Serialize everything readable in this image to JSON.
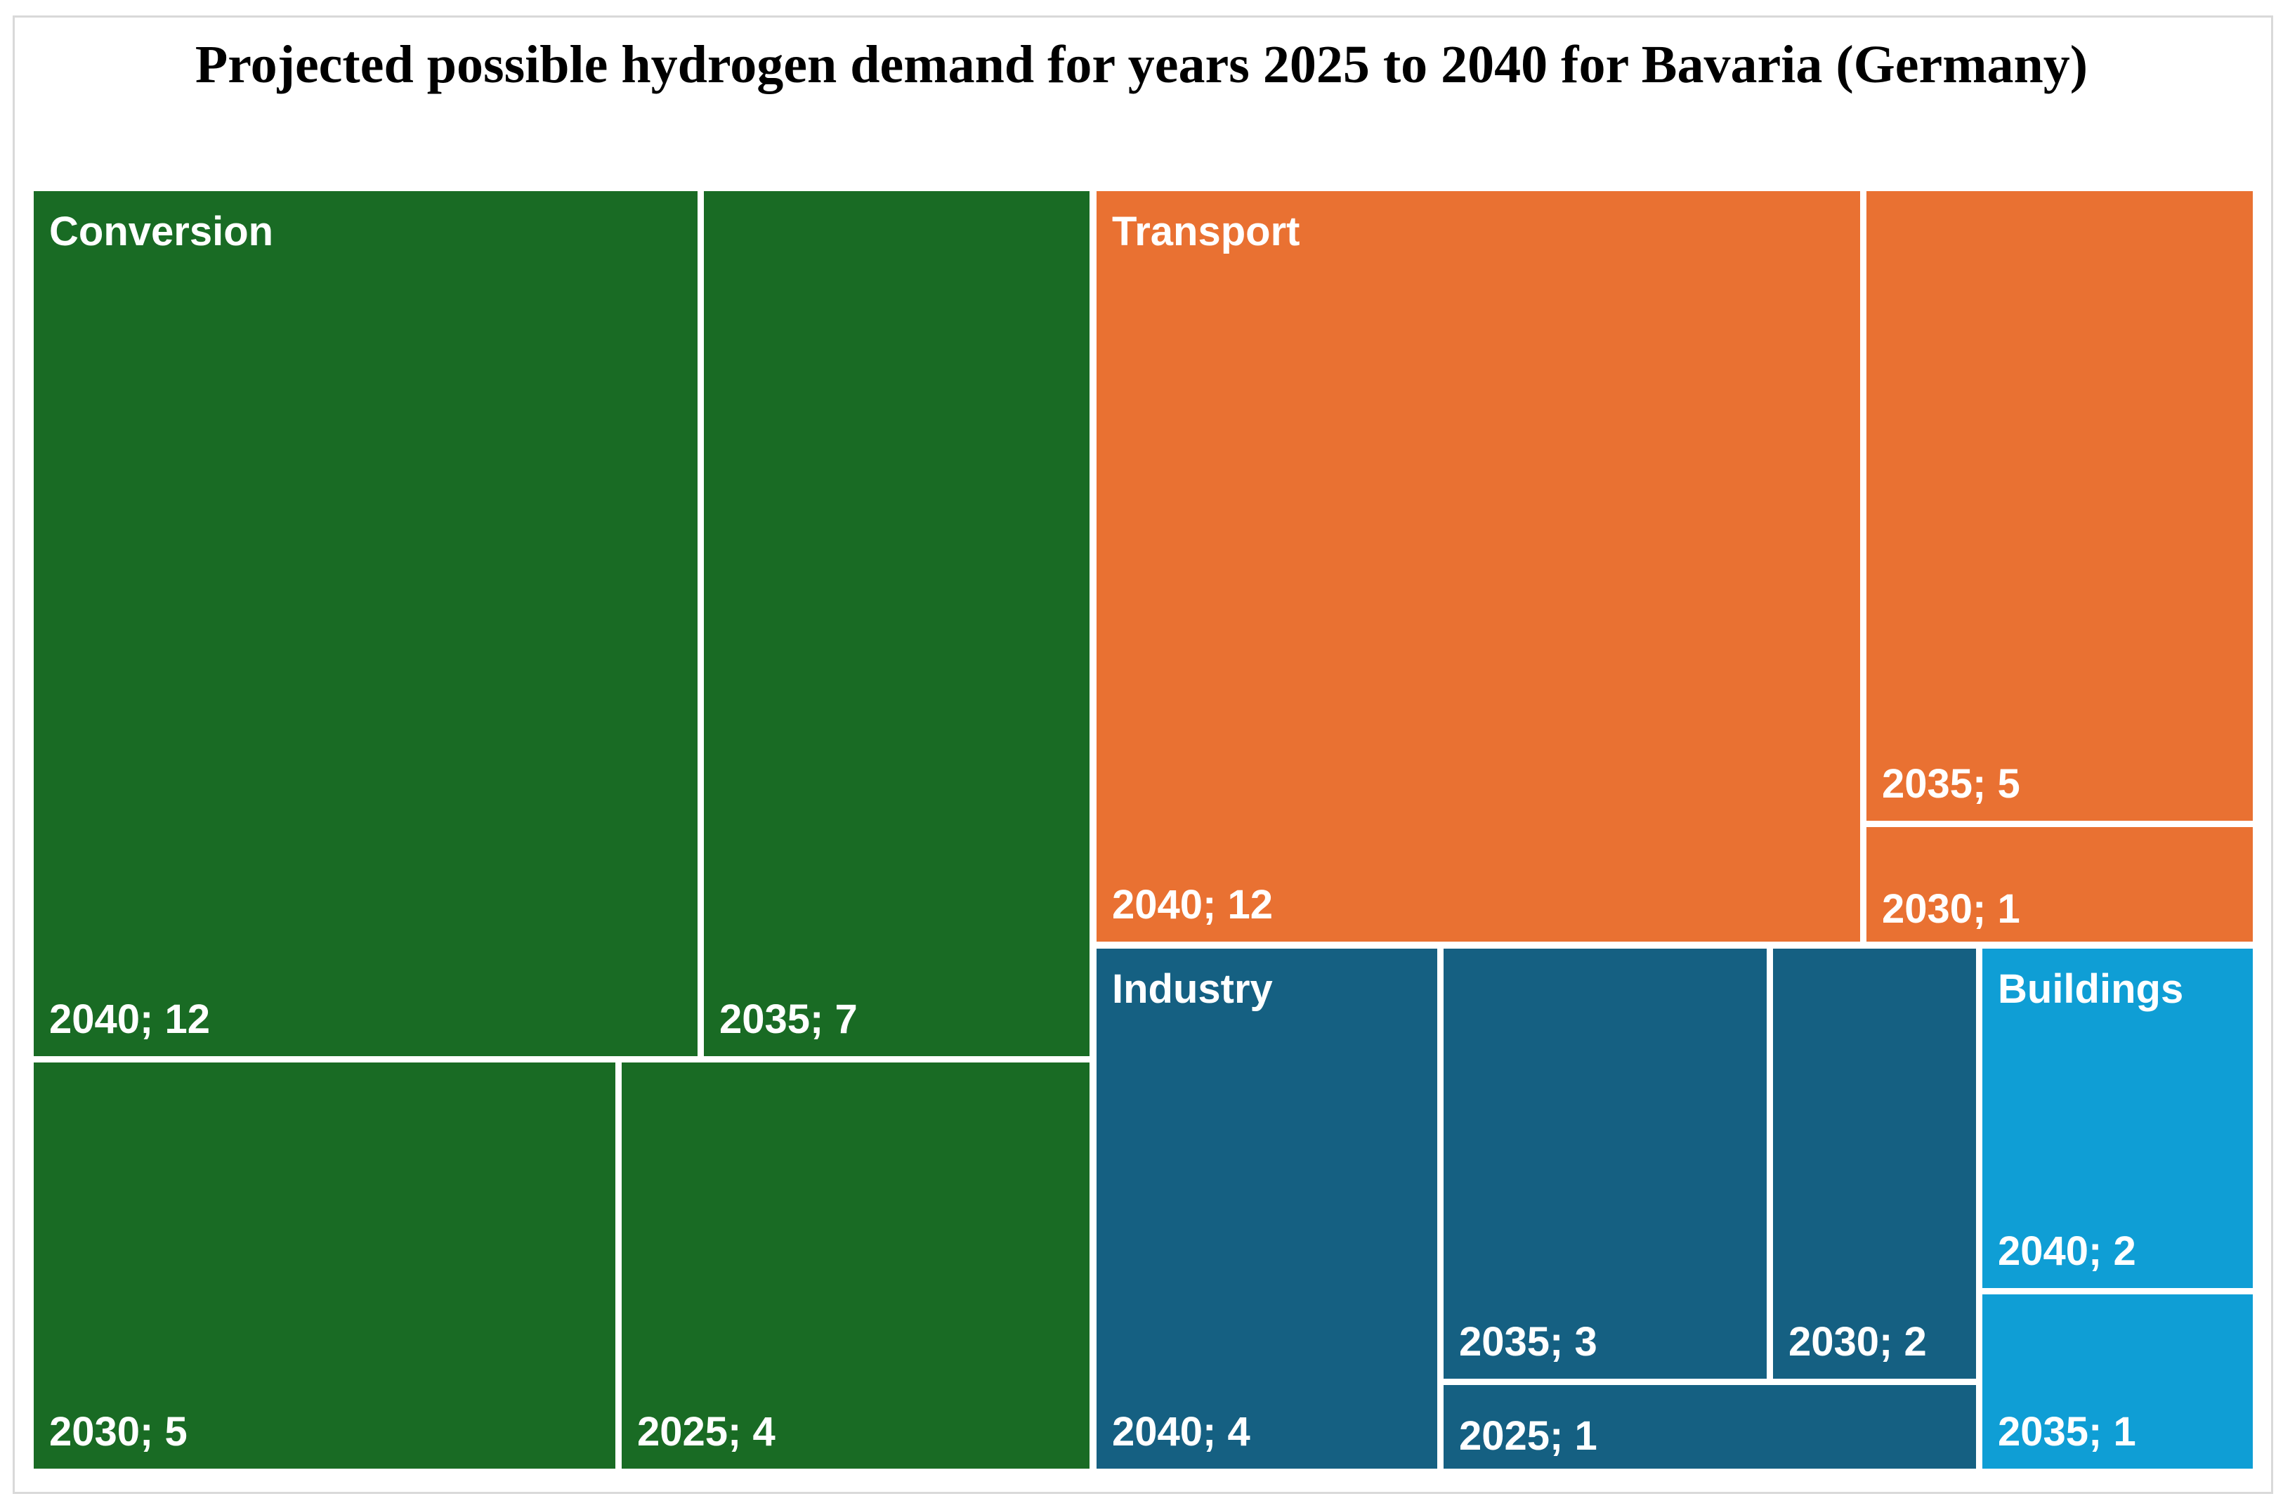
{
  "title": "Projected possible hydrogen demand for years 2025 to 2040 for Bavaria (Germany)",
  "frame": {
    "background": "#FFFFFF",
    "border_color": "#D9D9D9",
    "gap_color": "#FFFFFF",
    "label_color": "#FFFFFF"
  },
  "chart_data": {
    "type": "treemap",
    "title": "Projected possible hydrogen demand for years 2025 to 2040 for Bavaria (Germany)",
    "legend": "none",
    "label_format": "year; value",
    "groups": [
      {
        "name": "Conversion",
        "color": "#196B24",
        "items": [
          {
            "year": 2040,
            "value": 12,
            "label": "2040; 12"
          },
          {
            "year": 2035,
            "value": 7,
            "label": "2035; 7"
          },
          {
            "year": 2030,
            "value": 5,
            "label": "2030; 5"
          },
          {
            "year": 2025,
            "value": 4,
            "label": "2025; 4"
          }
        ]
      },
      {
        "name": "Transport",
        "color": "#E97132",
        "items": [
          {
            "year": 2040,
            "value": 12,
            "label": "2040; 12"
          },
          {
            "year": 2035,
            "value": 5,
            "label": "2035; 5"
          },
          {
            "year": 2030,
            "value": 1,
            "label": "2030; 1"
          }
        ]
      },
      {
        "name": "Industry",
        "color": "#156082",
        "items": [
          {
            "year": 2040,
            "value": 4,
            "label": "2040; 4"
          },
          {
            "year": 2035,
            "value": 3,
            "label": "2035; 3"
          },
          {
            "year": 2030,
            "value": 2,
            "label": "2030; 2"
          },
          {
            "year": 2025,
            "value": 1,
            "label": "2025; 1"
          }
        ]
      },
      {
        "name": "Buildings",
        "color": "#0F9ED5",
        "items": [
          {
            "year": 2040,
            "value": 2,
            "label": "2040; 2"
          },
          {
            "year": 2035,
            "value": 1,
            "label": "2035; 1"
          }
        ]
      }
    ]
  }
}
